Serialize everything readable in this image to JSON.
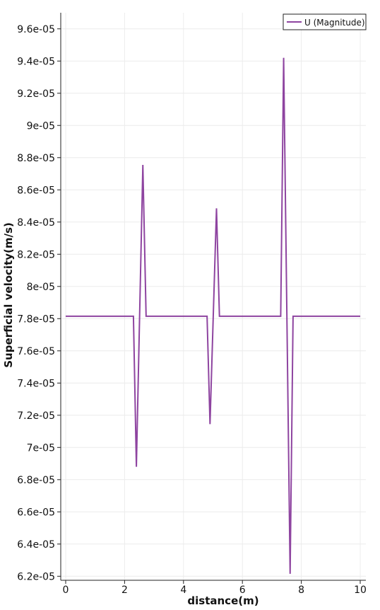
{
  "chart_data": {
    "type": "line",
    "xlabel": "distance(m)",
    "ylabel": "Superficial velocity(m/s)",
    "xlim": [
      0,
      10.05
    ],
    "ylim": [
      6.175e-05,
      9.7e-05
    ],
    "x_ticks": [
      0,
      2,
      4,
      6,
      8,
      10
    ],
    "x_tick_labels": [
      "0",
      "2",
      "4",
      "6",
      "8",
      "10"
    ],
    "y_ticks": [
      6.2e-05,
      6.4e-05,
      6.6e-05,
      6.8e-05,
      7e-05,
      7.2e-05,
      7.4e-05,
      7.6e-05,
      7.8e-05,
      8e-05,
      8.2e-05,
      8.4e-05,
      8.6e-05,
      8.8e-05,
      9e-05,
      9.2e-05,
      9.4e-05,
      9.6e-05
    ],
    "y_tick_labels": [
      "6.2e-05",
      "6.4e-05",
      "6.6e-05",
      "6.8e-05",
      "7e-05",
      "7.2e-05",
      "7.4e-05",
      "7.6e-05",
      "7.8e-05",
      "8e-05",
      "8.2e-05",
      "8.4e-05",
      "8.6e-05",
      "8.8e-05",
      "9e-05",
      "9.2e-05",
      "9.4e-05",
      "9.6e-05"
    ],
    "grid": true,
    "legend_position": "top-right",
    "series": [
      {
        "name": "U (Magnitude)",
        "color": "#8e44a0",
        "x": [
          0,
          2.3,
          2.4,
          2.62,
          2.73,
          4.8,
          4.9,
          5.12,
          5.22,
          7.3,
          7.4,
          7.62,
          7.72,
          10.0
        ],
        "y": [
          7.815e-05,
          7.815e-05,
          6.88e-05,
          8.755e-05,
          7.815e-05,
          7.815e-05,
          7.145e-05,
          8.485e-05,
          7.815e-05,
          7.815e-05,
          9.42e-05,
          6.215e-05,
          7.815e-05,
          7.815e-05
        ]
      }
    ]
  }
}
